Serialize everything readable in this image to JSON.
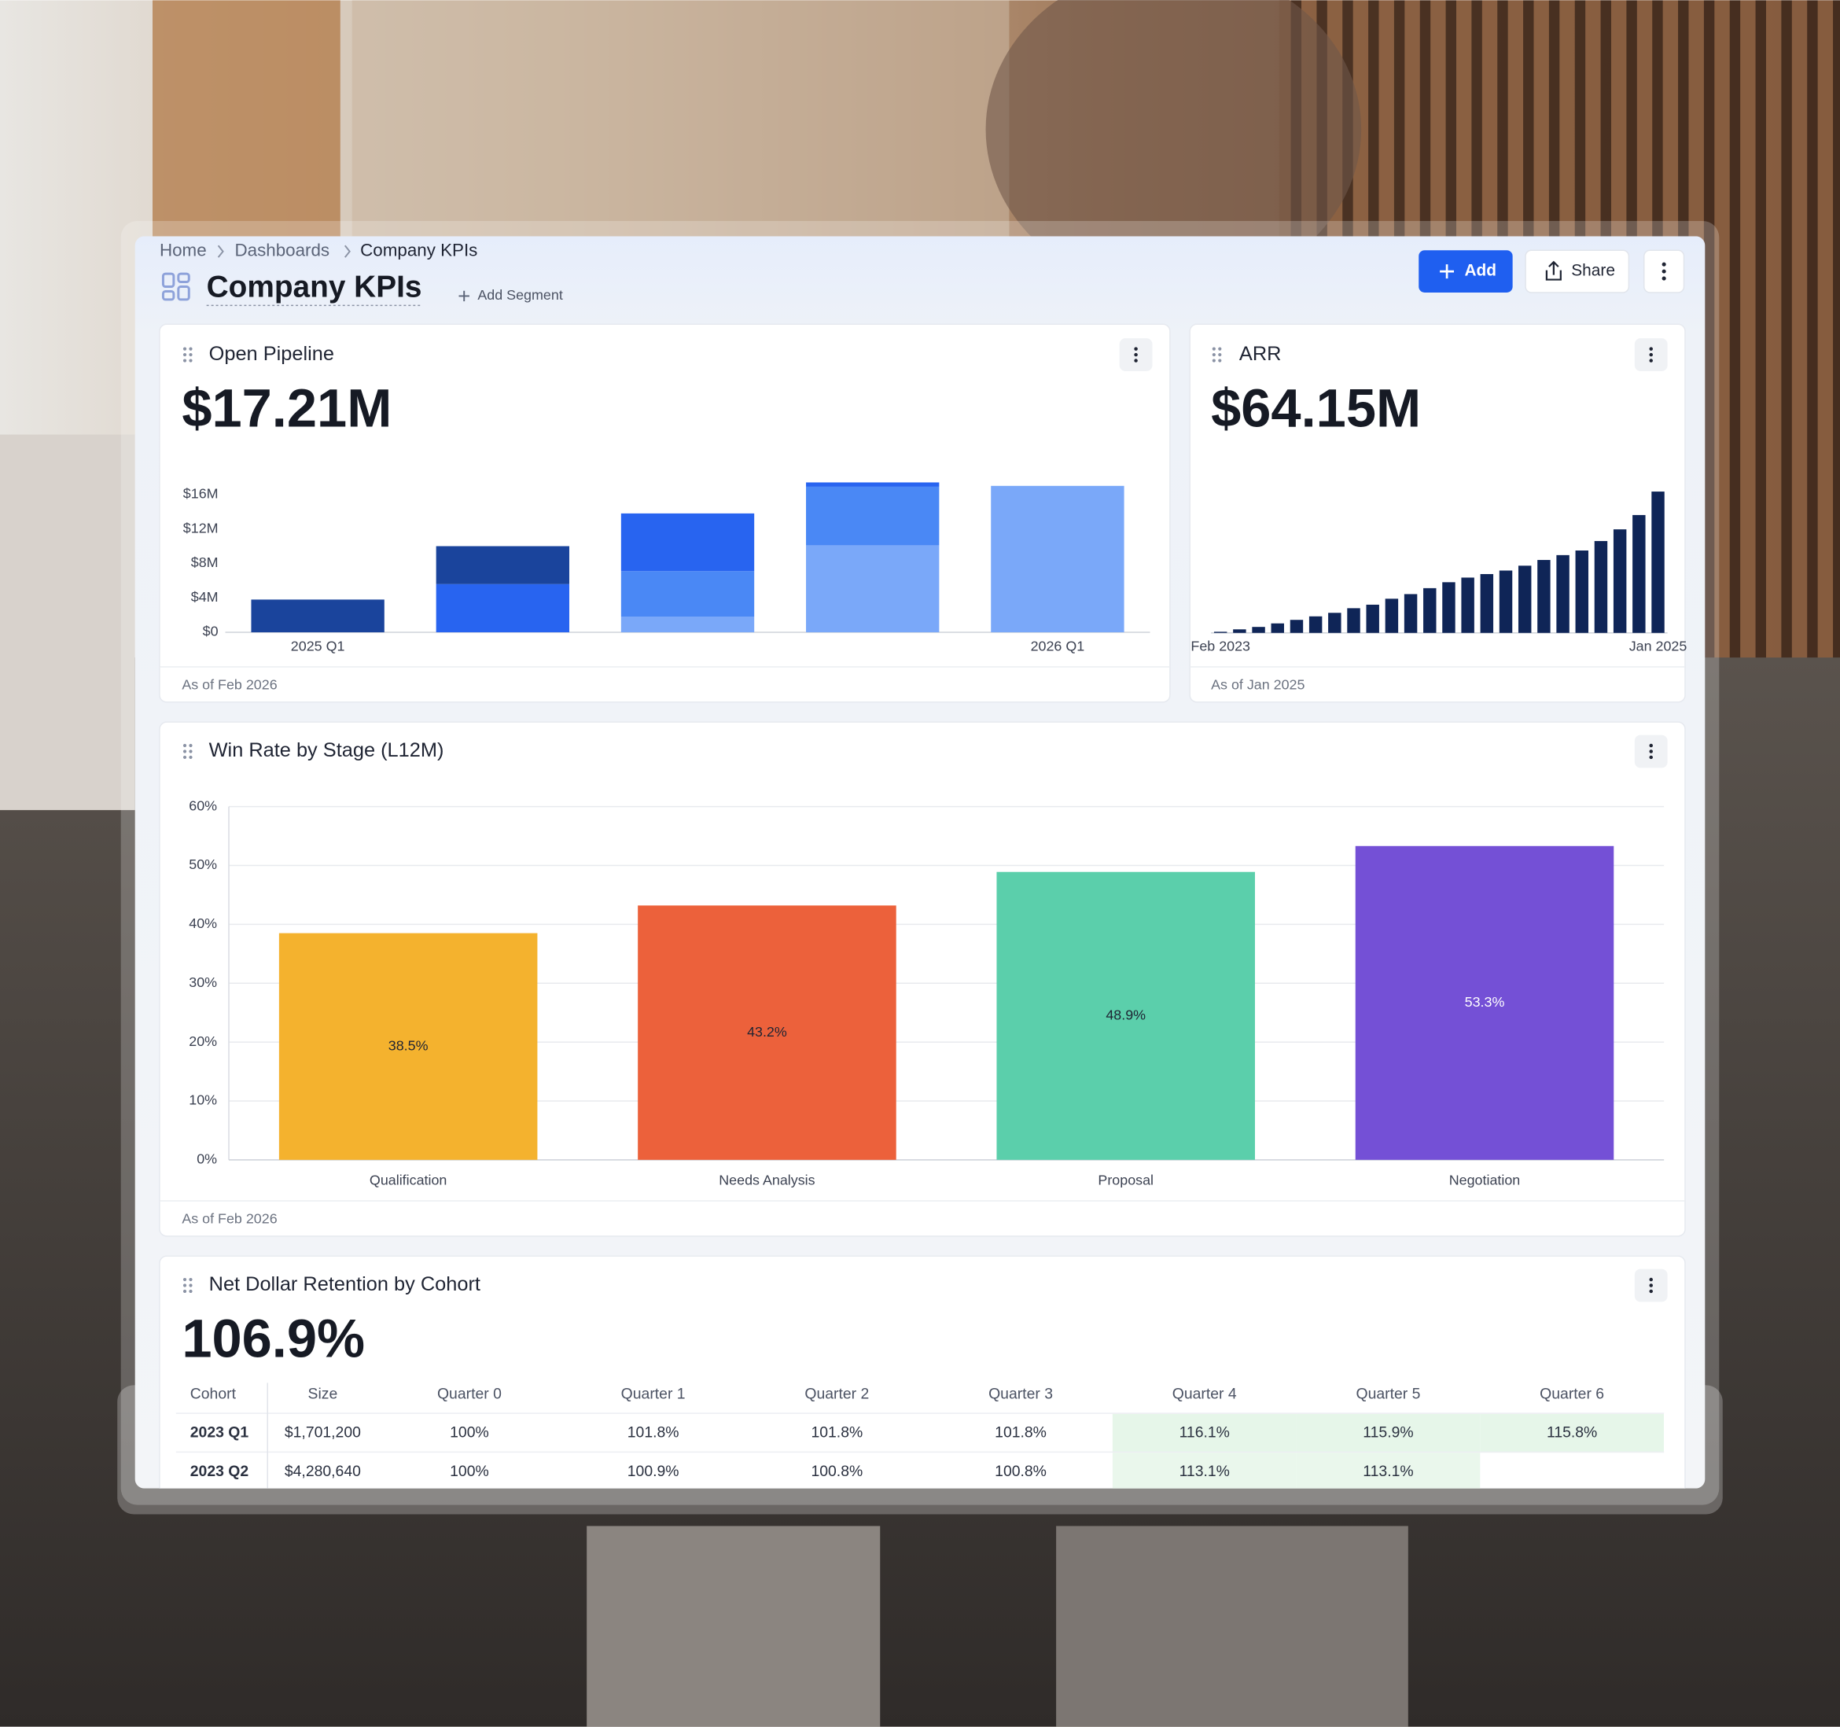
{
  "breadcrumbs": [
    "Home",
    "Dashboards",
    "Company KPIs"
  ],
  "header": {
    "title": "Company KPIs",
    "add_segment": "Add Segment",
    "buttons": [
      "Add",
      "Share"
    ]
  },
  "pipeline": {
    "title": "Open Pipeline",
    "kpi": "$17.21M",
    "footer": "As of Feb 2026",
    "chart_data": {
      "type": "bar",
      "stacked": true,
      "categories": [
        "2025 Q1",
        null,
        null,
        null,
        "2026 Q1"
      ],
      "series": [
        {
          "color": "#7aa8f9",
          "values": [
            0,
            0,
            1800000,
            10100000,
            17000000
          ]
        },
        {
          "color": "#4a88f5",
          "values": [
            0,
            0,
            5300000,
            6800000,
            0
          ]
        },
        {
          "color": "#2864f0",
          "values": [
            0,
            5600000,
            6700000,
            500000,
            0
          ]
        },
        {
          "color": "#1a449c",
          "values": [
            3800000,
            4400000,
            0,
            0,
            0
          ]
        }
      ],
      "ylim": [
        0,
        18000000
      ],
      "yticks": [
        {
          "value": 0,
          "label": "$0"
        },
        {
          "value": 4000000,
          "label": "$4M"
        },
        {
          "value": 8000000,
          "label": "$8M"
        },
        {
          "value": 12000000,
          "label": "$12M"
        },
        {
          "value": 16000000,
          "label": "$16M"
        }
      ],
      "grid": false
    }
  },
  "arr": {
    "title": "ARR",
    "kpi": "$64.15M",
    "footer": "As of Jan 2025",
    "chart_data": {
      "type": "bar",
      "categories": [
        "Feb 2023",
        null,
        null,
        null,
        null,
        null,
        null,
        null,
        null,
        null,
        null,
        null,
        null,
        null,
        null,
        null,
        null,
        null,
        null,
        null,
        null,
        null,
        null,
        "Jan 2025"
      ],
      "values": [
        0.5,
        1.6,
        2.7,
        4.3,
        5.9,
        7.5,
        9.1,
        11.2,
        12.8,
        15.5,
        17.6,
        20.3,
        23.0,
        25.1,
        26.7,
        28.3,
        30.5,
        33.1,
        35.3,
        37.4,
        41.7,
        47.0,
        53.5,
        64.15
      ],
      "color": "#0f2557",
      "ylim": [
        0,
        65
      ],
      "grid": false
    }
  },
  "winrate": {
    "title": "Win Rate by Stage (L12M)",
    "footer": "As of Feb 2026",
    "chart_data": {
      "type": "bar",
      "categories": [
        "Qualification",
        "Needs Analysis",
        "Proposal",
        "Negotiation"
      ],
      "values": [
        38.5,
        43.2,
        48.9,
        53.3
      ],
      "value_labels": [
        "38.5%",
        "43.2%",
        "48.9%",
        "53.3%"
      ],
      "colors": [
        "#f4b22e",
        "#ec613b",
        "#5bcfab",
        "#7450d6"
      ],
      "ylim": [
        0,
        60
      ],
      "yticks": [
        {
          "value": 0,
          "label": "0%"
        },
        {
          "value": 10,
          "label": "10%"
        },
        {
          "value": 20,
          "label": "20%"
        },
        {
          "value": 30,
          "label": "30%"
        },
        {
          "value": 40,
          "label": "40%"
        },
        {
          "value": 50,
          "label": "50%"
        },
        {
          "value": 60,
          "label": "60%"
        }
      ],
      "grid": true
    }
  },
  "ndr": {
    "title": "Net Dollar Retention by Cohort",
    "kpi": "106.9%",
    "table": {
      "columns": [
        "Cohort",
        "Size",
        "Quarter 0",
        "Quarter 1",
        "Quarter 2",
        "Quarter 3",
        "Quarter 4",
        "Quarter 5",
        "Quarter 6"
      ],
      "rows": [
        [
          "2023 Q1",
          "$1,701,200",
          "100%",
          "101.8%",
          "101.8%",
          "101.8%",
          "116.1%",
          "115.9%",
          "115.8%"
        ],
        [
          "2023 Q2",
          "$4,280,640",
          "100%",
          "100.9%",
          "100.8%",
          "100.8%",
          "113.1%",
          "113.1%"
        ]
      ]
    }
  }
}
